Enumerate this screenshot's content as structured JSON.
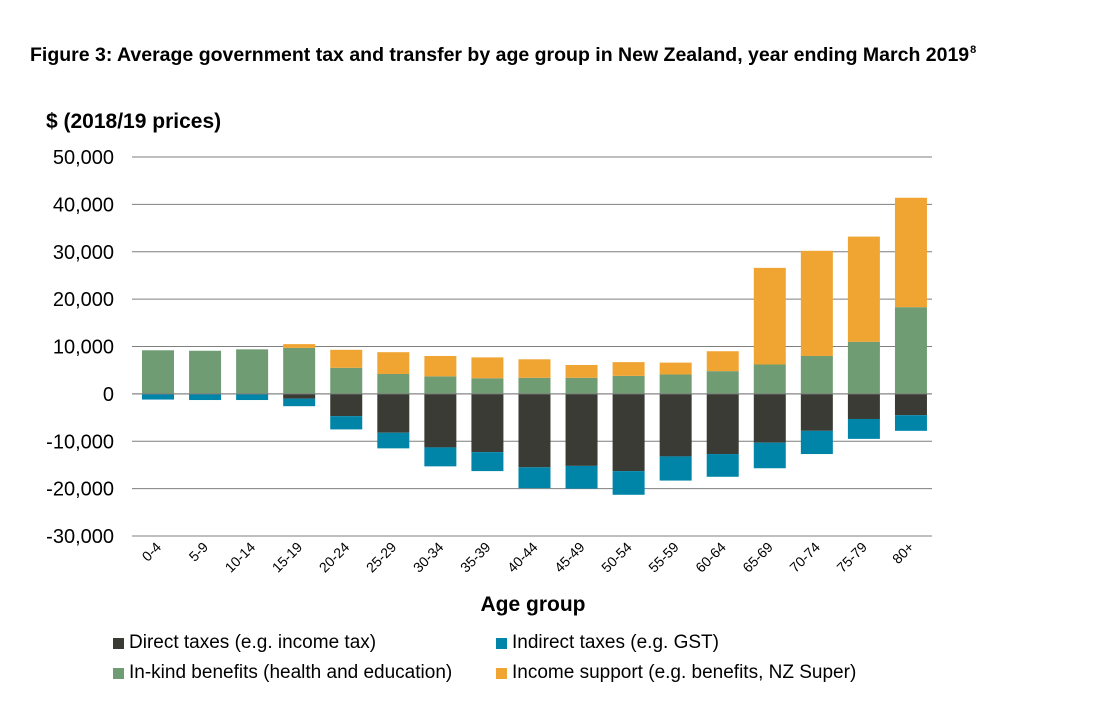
{
  "figure": {
    "title": "Figure 3: Average government tax and transfer by age group in New Zealand, year ending March 2019",
    "footnote_mark": "8"
  },
  "chart_data": {
    "type": "bar",
    "stacked": true,
    "ylabel": "$ (2018/19 prices)",
    "xlabel": "Age group",
    "ylim": [
      -30000,
      50000
    ],
    "yticks": [
      50000,
      40000,
      30000,
      20000,
      10000,
      0,
      -10000,
      -20000,
      -30000
    ],
    "ytick_labels": [
      "50,000",
      "40,000",
      "30,000",
      "20,000",
      "10,000",
      "0",
      "-10,000",
      "-20,000",
      "-30,000"
    ],
    "grid": true,
    "legend_position": "bottom",
    "categories": [
      "0-4",
      "5-9",
      "10-14",
      "15-19",
      "20-24",
      "25-29",
      "30-34",
      "35-39",
      "40-44",
      "45-49",
      "50-54",
      "55-59",
      "60-64",
      "65-69",
      "70-74",
      "75-79",
      "80+"
    ],
    "series": [
      {
        "name": "Direct taxes (e.g. income tax)",
        "color": "#3b3b35",
        "values": [
          0,
          0,
          0,
          -1000,
          -4700,
          -8200,
          -11300,
          -12300,
          -15500,
          -15200,
          -16300,
          -13200,
          -12700,
          -10300,
          -7800,
          -5300,
          -4500
        ]
      },
      {
        "name": "Indirect taxes (e.g. GST)",
        "color": "#0085a9",
        "values": [
          -1200,
          -1300,
          -1300,
          -1600,
          -2800,
          -3300,
          -4000,
          -4000,
          -4400,
          -4800,
          -5000,
          -5100,
          -4800,
          -5400,
          -4900,
          -4200,
          -3300
        ]
      },
      {
        "name": "In-kind benefits (health and education)",
        "color": "#6f9c73",
        "values": [
          9200,
          9100,
          9400,
          9700,
          5500,
          4200,
          3700,
          3300,
          3400,
          3400,
          3800,
          4100,
          4800,
          6200,
          8000,
          11000,
          18300
        ]
      },
      {
        "name": "Income support (e.g. benefits, NZ Super)",
        "color": "#f0a533",
        "values": [
          0,
          0,
          0,
          800,
          3800,
          4600,
          4300,
          4400,
          3900,
          2700,
          2900,
          2500,
          4200,
          20400,
          22200,
          22200,
          23100
        ]
      }
    ]
  }
}
